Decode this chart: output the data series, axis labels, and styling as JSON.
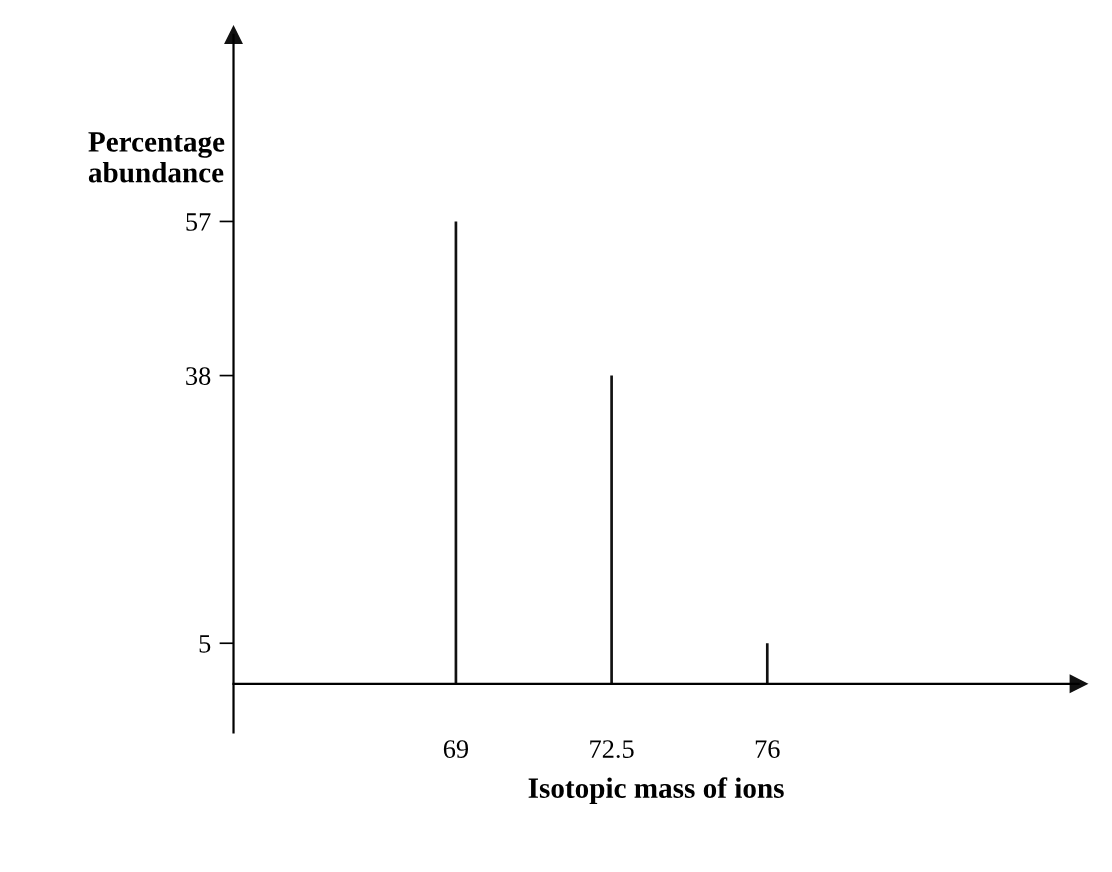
{
  "chart_data": {
    "type": "bar",
    "xlabel": "Isotopic mass of ions",
    "ylabel": "Percentage\nabundance",
    "x": [
      69,
      72.5,
      76
    ],
    "values": [
      57,
      38,
      5
    ],
    "color": "#111111",
    "xlim": [
      64,
      83
    ],
    "ylim": [
      -6,
      80
    ],
    "xticks": [
      69,
      72.5,
      76
    ],
    "yticks": [
      57,
      38,
      5
    ],
    "grid": false
  }
}
